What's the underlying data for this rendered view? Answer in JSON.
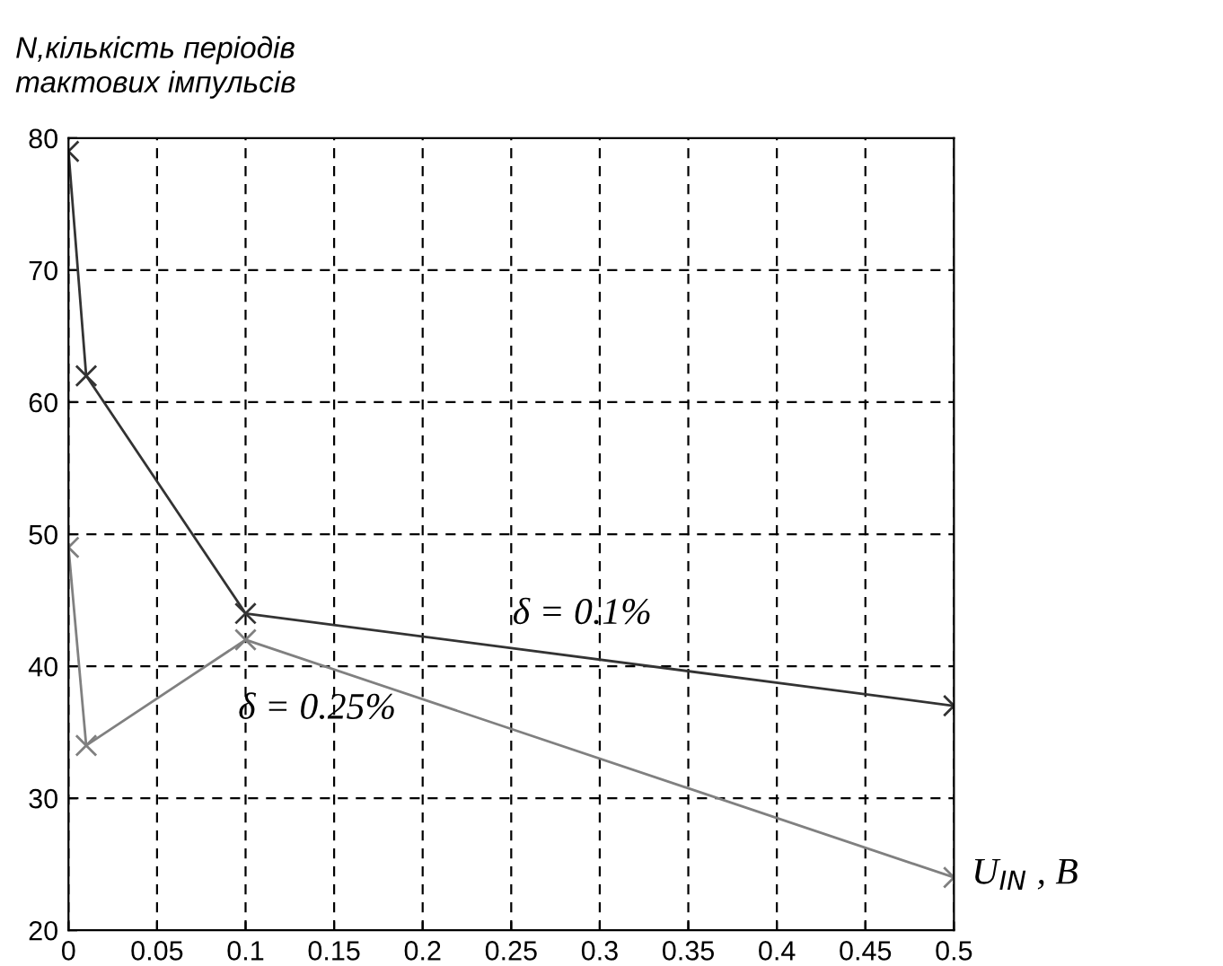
{
  "chart_data": {
    "type": "line",
    "ylabel": "N,кількість періодів\nтактових імпульсів",
    "xlabel": "U$_{IN}$ , B",
    "x": [
      0,
      0.01,
      0.1,
      0.5
    ],
    "series": [
      {
        "name": "δ = 0.1%",
        "color": "#333333",
        "values": [
          79,
          62,
          44,
          37
        ]
      },
      {
        "name": "δ = 0.25%",
        "color": "#808080",
        "values": [
          49,
          34,
          42,
          24
        ]
      }
    ],
    "xlim": [
      0,
      0.5
    ],
    "ylim": [
      20,
      80
    ],
    "xticks": [
      0,
      0.05,
      0.1,
      0.15,
      0.2,
      0.25,
      0.3,
      0.35,
      0.4,
      0.45,
      0.5
    ],
    "yticks": [
      20,
      30,
      40,
      50,
      60,
      70,
      80
    ],
    "grid": true,
    "marker": "cross",
    "line_style": "solid",
    "legend": false
  }
}
